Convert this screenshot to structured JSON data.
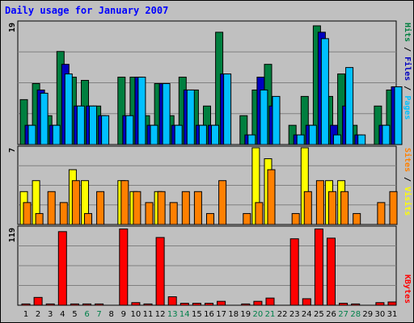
{
  "chart_data": [
    {
      "type": "bar",
      "title": "Daily usage for January 2007",
      "ymax": 19,
      "categories": [
        "1",
        "2",
        "3",
        "4",
        "5",
        "6",
        "7",
        "8",
        "9",
        "10",
        "11",
        "12",
        "13",
        "14",
        "15",
        "16",
        "17",
        "18",
        "19",
        "20",
        "21",
        "22",
        "23",
        "24",
        "25",
        "26",
        "27",
        "28",
        "29",
        "30",
        "31"
      ],
      "weekend_days": [
        "6",
        "7",
        "13",
        "14",
        "20",
        "21",
        "27",
        "28"
      ],
      "series": [
        {
          "name": "Hits",
          "color": "#007f3f",
          "values": [
            7,
            9.5,
            4.5,
            14.5,
            10.5,
            10,
            6,
            0,
            10.5,
            10.5,
            4.5,
            9.5,
            4.5,
            10.5,
            8.5,
            6,
            17.5,
            0,
            4.5,
            8.5,
            12.5,
            0,
            3,
            7.5,
            18.5,
            7.5,
            11,
            3,
            0,
            6,
            8.5
          ]
        },
        {
          "name": "Files",
          "color": "#0000c0",
          "values": [
            3,
            8.5,
            3,
            12.5,
            6,
            6,
            4.5,
            0,
            4.5,
            10.5,
            3,
            9.5,
            3,
            8.5,
            3,
            3,
            11,
            0,
            1.5,
            10.5,
            6,
            0,
            1.5,
            3,
            17.5,
            3,
            6,
            1.5,
            0,
            3,
            9
          ]
        },
        {
          "name": "Pages",
          "color": "#00c0ff",
          "values": [
            3,
            8,
            3,
            11,
            6,
            6,
            4.5,
            0,
            4.5,
            10.5,
            3,
            9.5,
            3,
            8.5,
            3,
            3,
            11,
            0,
            1.5,
            8.5,
            7.5,
            0,
            1.5,
            3,
            16.5,
            1.5,
            12,
            1.5,
            0,
            3,
            9
          ]
        }
      ],
      "labels": [
        "Hits",
        "Files",
        "Pages"
      ]
    },
    {
      "type": "bar",
      "ymax": 7,
      "categories": [
        "1",
        "2",
        "3",
        "4",
        "5",
        "6",
        "7",
        "8",
        "9",
        "10",
        "11",
        "12",
        "13",
        "14",
        "15",
        "16",
        "17",
        "18",
        "19",
        "20",
        "21",
        "22",
        "23",
        "24",
        "25",
        "26",
        "27",
        "28",
        "29",
        "30",
        "31"
      ],
      "series": [
        {
          "name": "Visits",
          "color": "#ffff00",
          "values": [
            3,
            4,
            0,
            0,
            5,
            4,
            0,
            0,
            4,
            3,
            0,
            3,
            0,
            0,
            0,
            0,
            0,
            0,
            0,
            7,
            6,
            0,
            0,
            7,
            0,
            4,
            4,
            0,
            0,
            0,
            0
          ]
        },
        {
          "name": "Sites",
          "color": "#ff8000",
          "values": [
            2,
            1,
            3,
            2,
            4,
            1,
            3,
            0,
            4,
            3,
            2,
            3,
            2,
            3,
            3,
            1,
            4,
            0,
            1,
            2,
            5,
            0,
            1,
            3,
            4,
            3,
            3,
            1,
            0,
            2,
            3
          ]
        }
      ],
      "labels": [
        "Sites",
        "Visits"
      ]
    },
    {
      "type": "bar",
      "ymax": 119,
      "categories": [
        "1",
        "2",
        "3",
        "4",
        "5",
        "6",
        "7",
        "8",
        "9",
        "10",
        "11",
        "12",
        "13",
        "14",
        "15",
        "16",
        "17",
        "18",
        "19",
        "20",
        "21",
        "22",
        "23",
        "24",
        "25",
        "26",
        "27",
        "28",
        "29",
        "30",
        "31"
      ],
      "series": [
        {
          "name": "KBytes",
          "color": "#ff0000",
          "values": [
            2,
            12,
            2,
            113,
            2,
            2,
            2,
            0,
            117,
            4,
            2,
            104,
            13,
            3,
            3,
            3,
            6,
            0,
            2,
            6,
            11,
            0,
            102,
            10,
            117,
            103,
            3,
            2,
            0,
            4,
            5
          ]
        }
      ],
      "labels": [
        "KBytes"
      ]
    }
  ]
}
